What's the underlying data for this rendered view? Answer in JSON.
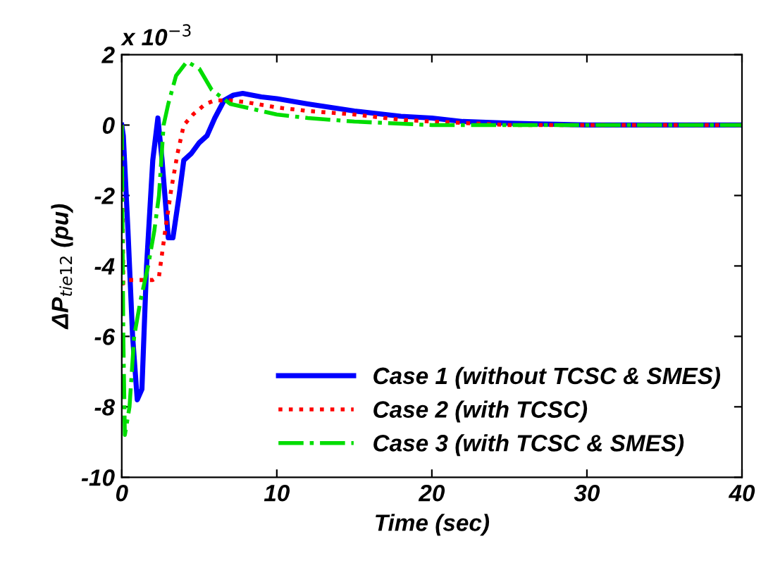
{
  "chart_data": {
    "type": "line",
    "xlabel": "Time (sec)",
    "ylabel": "ΔP$_{tie12}$ (pu)",
    "annotations": [
      "x 10$^{−3}$"
    ],
    "xlim": [
      0,
      40
    ],
    "xticks": [
      0,
      10,
      20,
      30,
      40
    ],
    "ylim": [
      -10,
      2
    ],
    "yticks": [
      -10,
      -8,
      -6,
      -4,
      -2,
      0,
      2
    ],
    "grid": false,
    "legend": "bottom right",
    "series": [
      {
        "name": "Case 1 (without TCSC & SMES)",
        "color": "#0000ff",
        "line_style": "solid",
        "x": [
          0,
          0.1,
          0.4,
          0.7,
          1.0,
          1.3,
          1.6,
          2.0,
          2.33,
          2.6,
          3.0,
          3.3,
          3.7,
          4.0,
          4.5,
          5.0,
          5.5,
          6.0,
          6.6,
          7.2,
          7.8,
          9,
          10,
          12,
          15,
          18,
          20,
          22,
          25,
          28,
          30,
          35,
          40
        ],
        "values": [
          0,
          -0.3,
          -3,
          -6,
          -7.8,
          -7.5,
          -4,
          -1,
          0.2,
          -1,
          -3.2,
          -3.2,
          -2,
          -1,
          -0.8,
          -0.5,
          -0.3,
          0.2,
          0.7,
          0.85,
          0.9,
          0.8,
          0.75,
          0.6,
          0.4,
          0.25,
          0.2,
          0.1,
          0.05,
          0.02,
          0,
          0,
          0
        ]
      },
      {
        "name": "Case 2 (with TCSC)",
        "color": "#ff0000",
        "line_style": "dotted",
        "x": [
          0,
          0.1,
          0.3,
          1,
          2,
          2.4,
          2.8,
          3.2,
          3.6,
          4.0,
          4.6,
          5.4,
          6,
          7,
          8,
          10,
          12,
          15,
          18,
          20,
          25,
          30,
          35,
          40
        ],
        "values": [
          0,
          -4.5,
          -4.4,
          -4.4,
          -4.4,
          -4.3,
          -3,
          -1.8,
          -0.8,
          0,
          0.3,
          0.6,
          0.7,
          0.7,
          0.65,
          0.5,
          0.4,
          0.3,
          0.15,
          0.1,
          0,
          0,
          0,
          0
        ]
      },
      {
        "name": "Case 3 (with TCSC & SMES)",
        "color": "#00dd00",
        "line_style": "dashdot",
        "x": [
          0,
          0.1,
          0.2,
          0.5,
          0.8,
          1.2,
          1.7,
          2.1,
          2.4,
          2.7,
          3.0,
          3.5,
          4.2,
          5.0,
          5.8,
          7,
          8.5,
          10,
          12,
          15,
          20,
          25,
          30,
          35,
          40
        ],
        "values": [
          0,
          -6,
          -8.8,
          -8,
          -6,
          -5,
          -4,
          -3,
          -2,
          0,
          0.6,
          1.4,
          1.8,
          1.6,
          1.0,
          0.6,
          0.45,
          0.3,
          0.2,
          0.1,
          0,
          0,
          0,
          0,
          0
        ]
      }
    ]
  }
}
